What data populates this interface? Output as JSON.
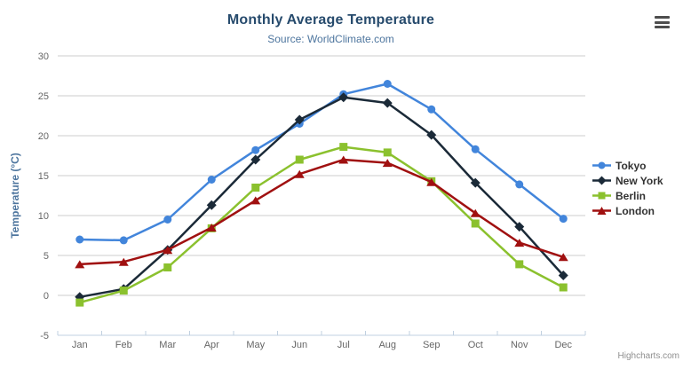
{
  "credits_label": "Highcharts.com",
  "icons": {
    "export_menu": "hamburger-menu-icon"
  },
  "chart_data": {
    "type": "line",
    "title": "Monthly Average Temperature",
    "subtitle": "Source: WorldClimate.com",
    "categories": [
      "Jan",
      "Feb",
      "Mar",
      "Apr",
      "May",
      "Jun",
      "Jul",
      "Aug",
      "Sep",
      "Oct",
      "Nov",
      "Dec"
    ],
    "xlabel": "",
    "ylabel": "Temperature (°C)",
    "ylim": [
      -5,
      30
    ],
    "ytick_interval": 5,
    "yticks": [
      -5,
      0,
      5,
      10,
      15,
      20,
      25,
      30
    ],
    "grid": true,
    "legend_position": "right",
    "series": [
      {
        "name": "Tokyo",
        "color": "#4285DB",
        "marker": "circle",
        "values": [
          7.0,
          6.9,
          9.5,
          14.5,
          18.2,
          21.5,
          25.2,
          26.5,
          23.3,
          18.3,
          13.9,
          9.6
        ]
      },
      {
        "name": "New York",
        "color": "#1B2A38",
        "marker": "diamond",
        "values": [
          -0.2,
          0.8,
          5.7,
          11.3,
          17.0,
          22.0,
          24.8,
          24.1,
          20.1,
          14.1,
          8.6,
          2.5
        ]
      },
      {
        "name": "Berlin",
        "color": "#8BC12E",
        "marker": "square",
        "values": [
          -0.9,
          0.6,
          3.5,
          8.4,
          13.5,
          17.0,
          18.6,
          17.9,
          14.3,
          9.0,
          3.9,
          1.0
        ]
      },
      {
        "name": "London",
        "color": "#A01010",
        "marker": "triangle",
        "values": [
          3.9,
          4.2,
          5.7,
          8.5,
          11.9,
          15.2,
          17.0,
          16.6,
          14.2,
          10.3,
          6.6,
          4.8
        ]
      }
    ],
    "colors": {
      "title": "#274b6d",
      "subtitle": "#4d759e",
      "axis_title": "#4d759e",
      "tick_label": "#666666",
      "gridline": "#CCCCCC",
      "axis_line": "#C0D0E0",
      "legend_text": "#333333",
      "credits": "#8f8f8f",
      "menu_icon": "#4d4d4d"
    }
  }
}
